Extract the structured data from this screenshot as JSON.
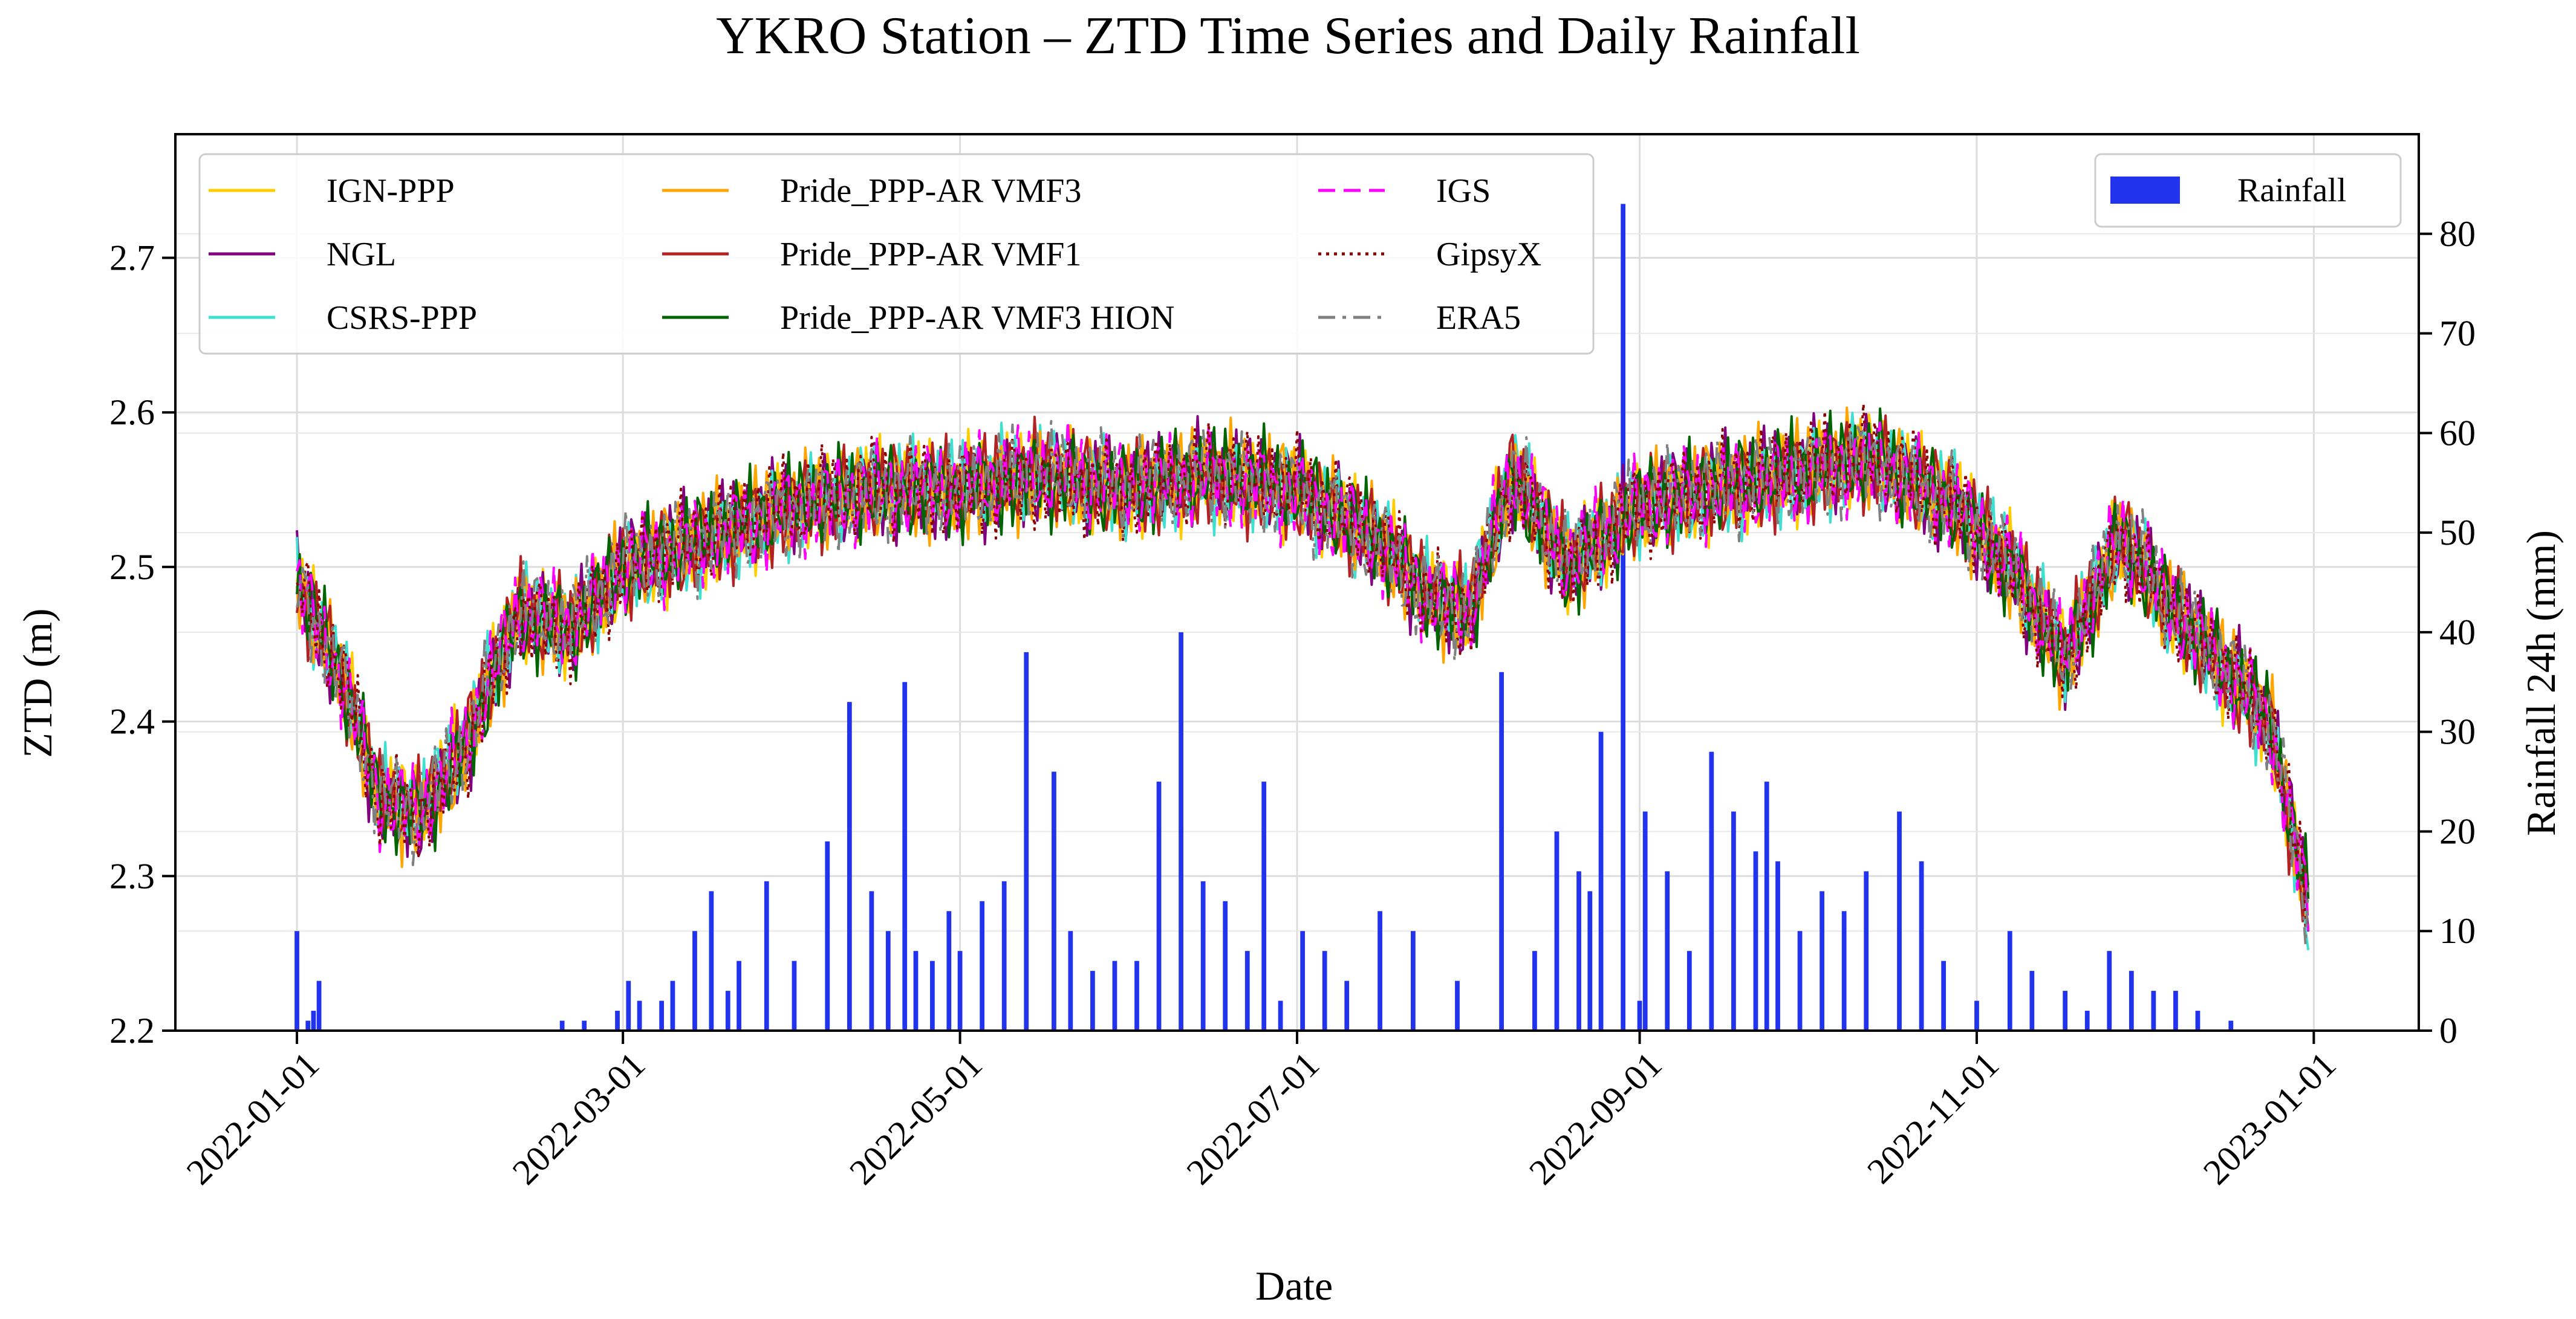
{
  "chart_data": {
    "type": "line",
    "title": "YKRO Station – ZTD Time Series and Daily Rainfall",
    "xlabel": "Date",
    "ylabel": "ZTD (m)",
    "y2label": "Rainfall 24h (mm)",
    "x_range": [
      "2021-12-10",
      "2023-01-20"
    ],
    "ylim": [
      2.2,
      2.78
    ],
    "y2lim": [
      0,
      90
    ],
    "x_ticks": [
      "2022-01-01",
      "2022-03-01",
      "2022-05-01",
      "2022-07-01",
      "2022-09-01",
      "2022-11-01",
      "2023-01-01"
    ],
    "y_ticks": [
      "2.2",
      "2.3",
      "2.4",
      "2.5",
      "2.6",
      "2.7"
    ],
    "y2_ticks": [
      "0",
      "10",
      "20",
      "30",
      "40",
      "50",
      "60",
      "70",
      "80"
    ],
    "grid": true,
    "colors": {
      "y2_axis_label": "#1a1aff",
      "rainfall": "#2233ee"
    },
    "ztd_profile": {
      "day": [
        0,
        8,
        15,
        22,
        30,
        40,
        50,
        59,
        75,
        90,
        105,
        120,
        135,
        150,
        165,
        181,
        195,
        205,
        212,
        220,
        230,
        243,
        255,
        270,
        285,
        300,
        310,
        320,
        330,
        340,
        350,
        357,
        364
      ],
      "ztd": [
        2.49,
        2.43,
        2.35,
        2.34,
        2.38,
        2.47,
        2.46,
        2.5,
        2.52,
        2.54,
        2.55,
        2.55,
        2.56,
        2.55,
        2.56,
        2.55,
        2.52,
        2.48,
        2.47,
        2.56,
        2.5,
        2.54,
        2.55,
        2.56,
        2.57,
        2.54,
        2.5,
        2.44,
        2.52,
        2.47,
        2.43,
        2.4,
        2.28
      ]
    },
    "series": [
      {
        "name": "IGN-PPP",
        "color": "#ffcc00",
        "dash": "solid",
        "days": [
          0,
          364
        ]
      },
      {
        "name": "NGL",
        "color": "#800080",
        "dash": "solid",
        "days": [
          0,
          364
        ]
      },
      {
        "name": "CSRS-PPP",
        "color": "#40e0d0",
        "dash": "solid",
        "days": [
          0,
          364
        ]
      },
      {
        "name": "Pride_PPP-AR VMF3",
        "color": "#ffa500",
        "dash": "solid",
        "days": [
          0,
          364
        ]
      },
      {
        "name": "Pride_PPP-AR VMF1",
        "color": "#b22222",
        "dash": "solid",
        "days": [
          0,
          364
        ]
      },
      {
        "name": "Pride_PPP-AR VMF3 HION",
        "color": "#006400",
        "dash": "solid",
        "days": [
          0,
          364
        ]
      },
      {
        "name": "IGS",
        "color": "#ff00ff",
        "dash": "dashed",
        "days": [
          0,
          364
        ]
      },
      {
        "name": "GipsyX",
        "color": "#8b0000",
        "dash": "dotted",
        "days": [
          0,
          364
        ]
      },
      {
        "name": "ERA5",
        "color": "#808080",
        "dash": "dashdot",
        "days": [
          0,
          364
        ]
      }
    ],
    "rain_legend": "Rainfall",
    "rainfall": {
      "day": [
        0,
        2,
        3,
        4,
        48,
        52,
        58,
        60,
        62,
        66,
        68,
        72,
        75,
        78,
        80,
        85,
        90,
        96,
        100,
        104,
        107,
        110,
        112,
        115,
        118,
        120,
        124,
        128,
        132,
        137,
        140,
        144,
        148,
        152,
        156,
        160,
        164,
        168,
        172,
        175,
        178,
        182,
        186,
        190,
        196,
        202,
        210,
        218,
        224,
        228,
        232,
        234,
        236,
        240,
        243,
        244,
        248,
        252,
        256,
        260,
        264,
        266,
        268,
        272,
        276,
        280,
        284,
        290,
        294,
        298,
        304,
        310,
        314,
        320,
        324,
        328,
        332,
        336,
        340,
        344,
        350
      ],
      "mm": [
        10,
        1,
        2,
        5,
        1,
        1,
        2,
        5,
        3,
        3,
        5,
        10,
        14,
        4,
        7,
        15,
        7,
        19,
        33,
        14,
        10,
        35,
        8,
        7,
        12,
        8,
        13,
        15,
        38,
        26,
        10,
        6,
        7,
        7,
        25,
        40,
        15,
        13,
        8,
        25,
        3,
        10,
        8,
        5,
        12,
        10,
        5,
        36,
        8,
        20,
        16,
        14,
        30,
        83,
        3,
        22,
        16,
        8,
        28,
        22,
        18,
        25,
        17,
        10,
        14,
        12,
        16,
        22,
        17,
        7,
        3,
        10,
        6,
        4,
        2,
        8,
        6,
        4,
        4,
        2,
        1
      ]
    }
  }
}
